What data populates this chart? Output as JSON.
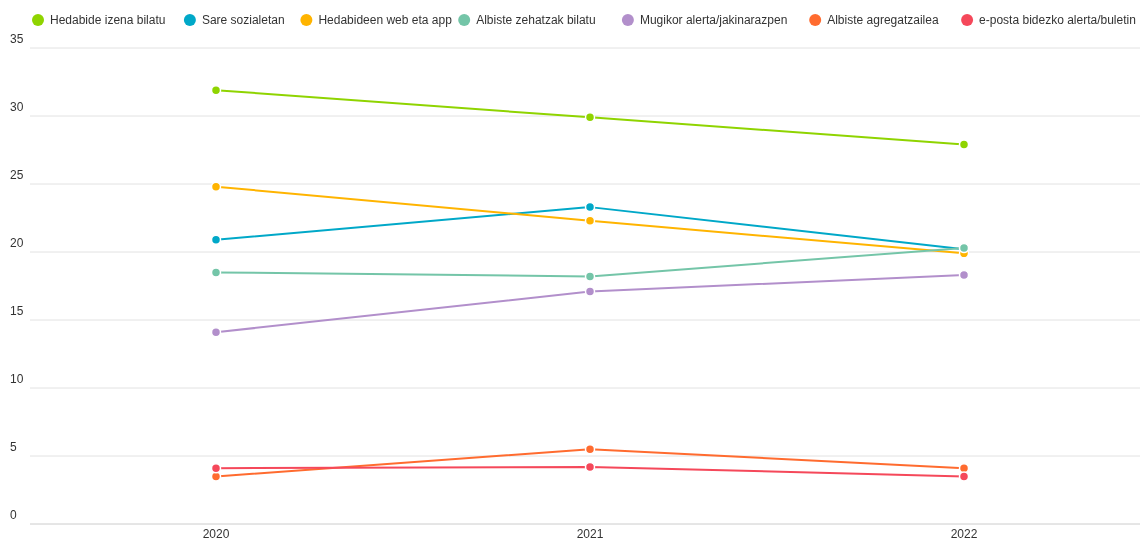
{
  "chart_data": {
    "type": "line",
    "categories": [
      "2020",
      "2021",
      "2022"
    ],
    "series": [
      {
        "name": "Hedabide izena bilatu",
        "color": "#8fd400",
        "values": [
          31.9,
          29.9,
          27.9
        ]
      },
      {
        "name": "Sare sozialetan",
        "color": "#00a8c8",
        "values": [
          20.9,
          23.3,
          20.2
        ]
      },
      {
        "name": "Hedabideen web eta app",
        "color": "#ffb400",
        "values": [
          24.8,
          22.3,
          19.9
        ]
      },
      {
        "name": "Albiste zehatzak bilatu",
        "color": "#74c5a8",
        "values": [
          18.5,
          18.2,
          20.3
        ]
      },
      {
        "name": "Mugikor alerta/jakinarazpen",
        "color": "#b28fcb",
        "values": [
          14.1,
          17.1,
          18.3
        ]
      },
      {
        "name": "Albiste agregatzailea",
        "color": "#ff6b2f",
        "values": [
          3.5,
          5.5,
          4.1
        ]
      },
      {
        "name": "e-posta bidezko alerta/buletin",
        "color": "#f5485a",
        "values": [
          4.1,
          4.2,
          3.5
        ]
      }
    ],
    "ylim": [
      0,
      35
    ],
    "yticks": [
      0,
      5,
      10,
      15,
      20,
      25,
      30,
      35
    ],
    "grid": "y",
    "legend": "top left",
    "marker": "circle",
    "line_style": "solid"
  }
}
